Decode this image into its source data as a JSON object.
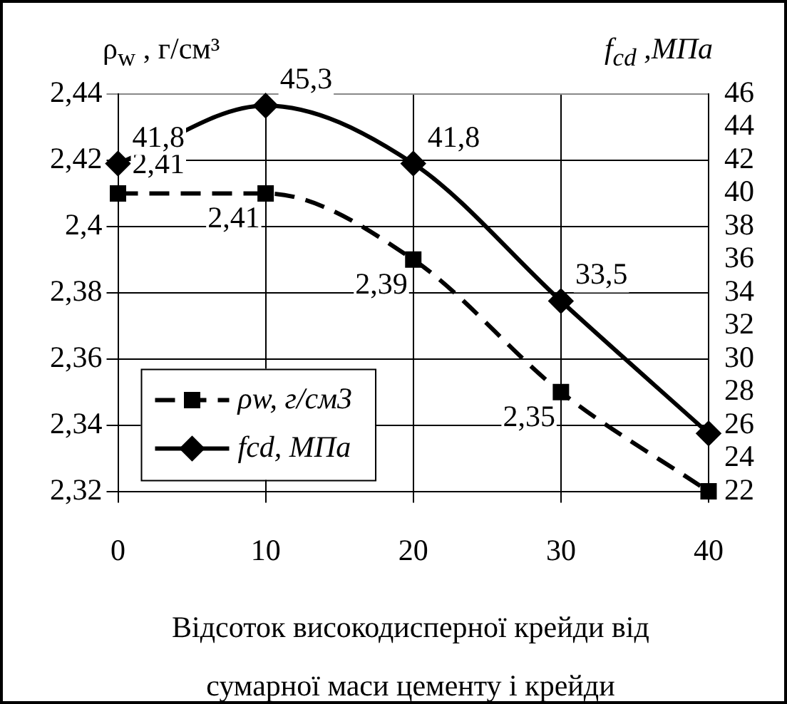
{
  "chart_data": {
    "type": "line",
    "ylabel": "ρ$_{w}$ , г/см³",
    "y2label": "f$_{cd}$ ,МПа",
    "xlabel": "Відсоток високодисперної крейди від сумарної маси цементу і крейди",
    "x": [
      0,
      10,
      20,
      30,
      40
    ],
    "xlim": [
      0,
      40
    ],
    "xticks": [
      0,
      10,
      20,
      30,
      40
    ],
    "ylim": [
      2.32,
      2.44
    ],
    "yticks": [
      {
        "value": 2.32,
        "label": "2,32"
      },
      {
        "value": 2.34,
        "label": "2,34"
      },
      {
        "value": 2.36,
        "label": "2,36"
      },
      {
        "value": 2.38,
        "label": "2,38"
      },
      {
        "value": 2.4,
        "label": "2,4"
      },
      {
        "value": 2.42,
        "label": "2,42"
      },
      {
        "value": 2.44,
        "label": "2,44"
      }
    ],
    "y2lim": [
      22,
      46
    ],
    "y2ticks": [
      22,
      24,
      26,
      28,
      30,
      32,
      34,
      36,
      38,
      40,
      42,
      44,
      46
    ],
    "series": [
      {
        "name": "ρw, г/см3",
        "color": "#000000",
        "values": [
          2.41,
          2.41,
          2.39,
          2.35,
          2.32
        ],
        "value_labels": [
          "2,41",
          "2,41",
          "2,39",
          "2,35",
          null
        ],
        "marker": "square",
        "line_style": "dashed"
      },
      {
        "name": "fcd, МПа",
        "color": "#000000",
        "axis": "y2",
        "values": [
          41.8,
          45.3,
          41.8,
          33.5,
          25.5
        ],
        "value_labels": [
          "41,8",
          "45,3",
          "41,8",
          "33,5",
          null
        ],
        "marker": "diamond",
        "line_style": "solid"
      }
    ],
    "grid": true,
    "legend": "bottom left"
  }
}
